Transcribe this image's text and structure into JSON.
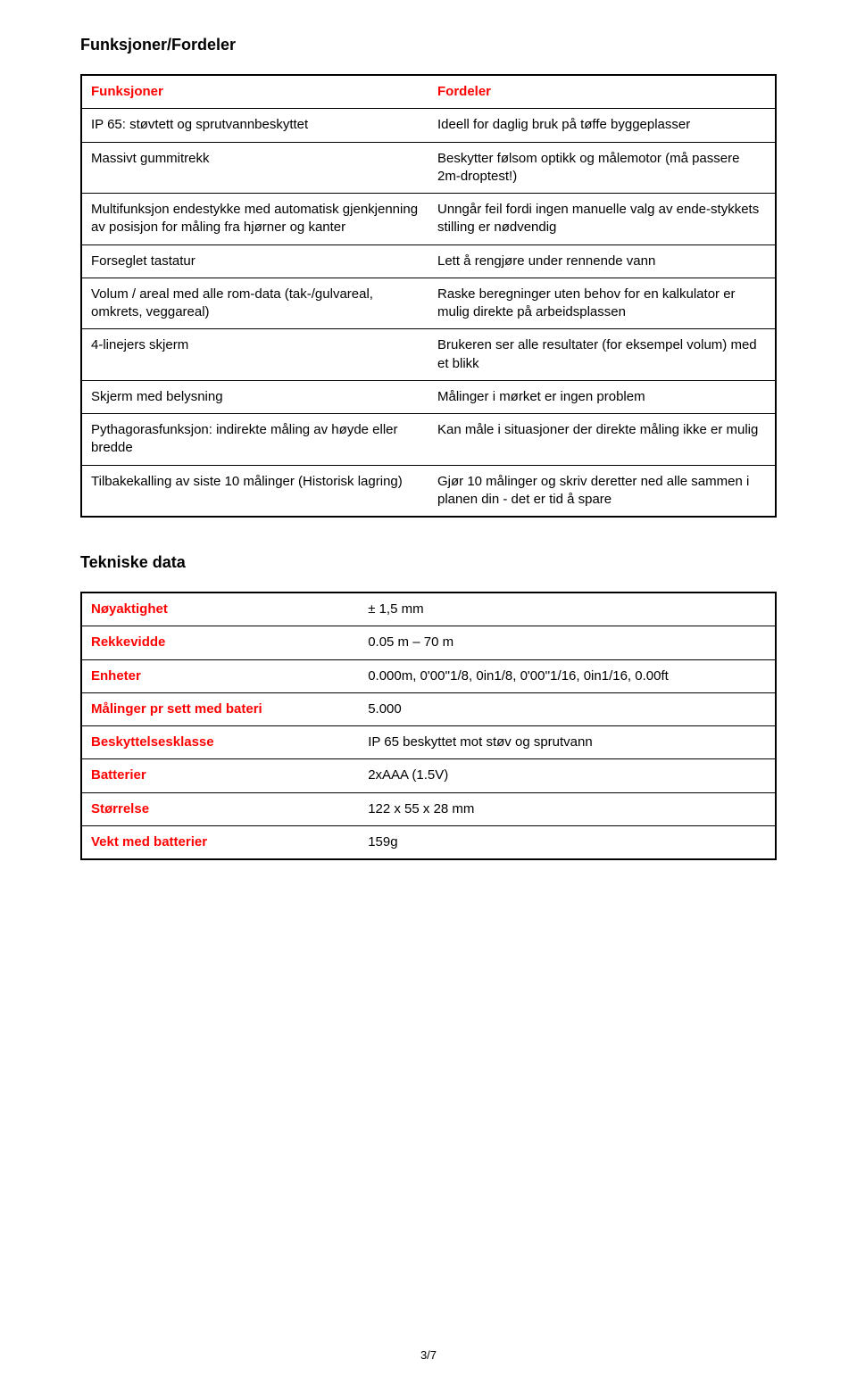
{
  "page": {
    "number": "3/7"
  },
  "section1": {
    "title": "Funksjoner/Fordeler",
    "header_left": "Funksjoner",
    "header_right": "Fordeler",
    "header_color": "#ff0000",
    "rows": [
      {
        "left": "IP 65: støvtett og sprutvannbeskyttet",
        "right": "Ideell for daglig bruk på tøffe byggeplasser"
      },
      {
        "left": "Massivt gummitrekk",
        "right": "Beskytter følsom optikk og målemotor (må passere 2m-droptest!)"
      },
      {
        "left": "Multifunksjon endestykke med automatisk gjenkjenning av posisjon for måling fra hjørner og kanter",
        "right": "Unngår feil fordi ingen manuelle valg av ende-stykkets stilling er nødvendig"
      },
      {
        "left": "Forseglet tastatur",
        "right": "Lett å rengjøre under rennende vann"
      },
      {
        "left": "Volum / areal med alle rom-data (tak-/gulvareal, omkrets, veggareal)",
        "right": "Raske beregninger uten behov for en kalkulator er mulig direkte på arbeidsplassen"
      },
      {
        "left": "4-linejers skjerm",
        "right": "Brukeren ser alle resultater (for eksempel volum) med et blikk"
      },
      {
        "left": "Skjerm med belysning",
        "right": "Målinger i mørket er ingen problem"
      },
      {
        "left": "Pythagorasfunksjon: indirekte måling av høyde eller bredde",
        "right": "Kan måle i situasjoner der direkte måling ikke er mulig"
      },
      {
        "left": "Tilbakekalling av siste 10 målinger (Historisk lagring)",
        "right": "Gjør 10 målinger og skriv deretter ned alle sammen i planen din - det er tid å spare"
      }
    ]
  },
  "section2": {
    "title": "Tekniske data",
    "label_color": "#ff0000",
    "rows": [
      {
        "label": "Nøyaktighet",
        "value": "± 1,5 mm"
      },
      {
        "label": "Rekkevidde",
        "value": "0.05 m – 70 m"
      },
      {
        "label": "Enheter",
        "value": "0.000m, 0'00''1/8, 0in1/8, 0'00''1/16, 0in1/16, 0.00ft"
      },
      {
        "label": "Målinger pr sett med bateri",
        "value": "5.000"
      },
      {
        "label": "Beskyttelsesklasse",
        "value": "IP 65 beskyttet mot støv og sprutvann"
      },
      {
        "label": "Batterier",
        "value": "2xAAA (1.5V)"
      },
      {
        "label": "Størrelse",
        "value": "122 x 55 x 28 mm"
      },
      {
        "label": "Vekt med batterier",
        "value": "159g"
      }
    ]
  }
}
